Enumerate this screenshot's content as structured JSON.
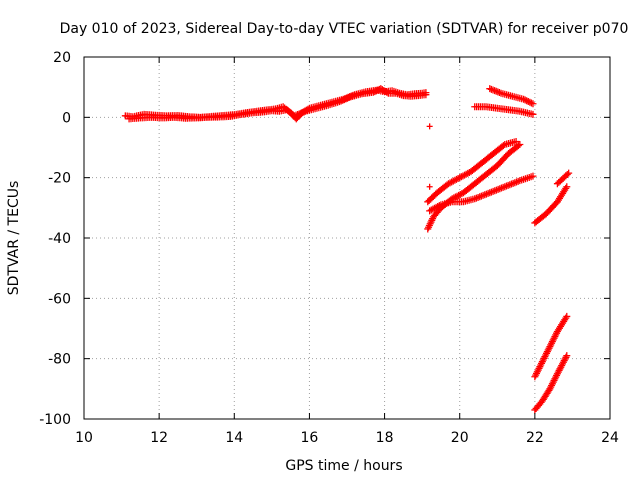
{
  "chart_data": {
    "type": "scatter",
    "title": "Day 010 of 2023, Sidereal Day-to-day VTEC variation (SDTVAR) for receiver p070",
    "xlabel": "GPS time / hours",
    "ylabel": "SDTVAR / TECUs",
    "xlim": [
      10,
      24
    ],
    "ylim": [
      -100,
      20
    ],
    "xticks": [
      "10",
      "12",
      "14",
      "16",
      "18",
      "20",
      "22",
      "24"
    ],
    "yticks": [
      "-100",
      "-80",
      "-60",
      "-40",
      "-20",
      "0",
      "20"
    ],
    "grid": true,
    "marker": "+",
    "series_color": "#ff0000",
    "series": [
      {
        "name": "arc-main",
        "points": [
          [
            11.1,
            0.5
          ],
          [
            11.3,
            0.2
          ],
          [
            11.6,
            1.0
          ],
          [
            11.9,
            0.7
          ],
          [
            12.2,
            0.5
          ],
          [
            12.5,
            0.6
          ],
          [
            12.8,
            0.2
          ],
          [
            13.1,
            0.0
          ],
          [
            13.4,
            0.3
          ],
          [
            13.7,
            0.6
          ],
          [
            14.0,
            0.9
          ],
          [
            14.3,
            1.5
          ],
          [
            14.6,
            2.0
          ],
          [
            14.9,
            2.5
          ],
          [
            15.1,
            2.8
          ],
          [
            15.3,
            3.5
          ],
          [
            15.5,
            1.5
          ],
          [
            15.65,
            -0.5
          ],
          [
            15.8,
            1.5
          ],
          [
            16.0,
            3.0
          ],
          [
            16.3,
            4.0
          ],
          [
            16.6,
            5.0
          ],
          [
            16.9,
            6.0
          ],
          [
            17.2,
            7.5
          ],
          [
            17.5,
            8.5
          ],
          [
            17.8,
            9.0
          ],
          [
            18.0,
            8.5
          ],
          [
            18.2,
            8.8
          ],
          [
            18.4,
            8.0
          ],
          [
            18.6,
            7.5
          ],
          [
            18.8,
            7.8
          ],
          [
            19.0,
            8.0
          ],
          [
            19.1,
            8.2
          ]
        ]
      },
      {
        "name": "arc-main-b",
        "points": [
          [
            11.2,
            -0.5
          ],
          [
            11.5,
            -0.2
          ],
          [
            11.8,
            0.0
          ],
          [
            12.1,
            -0.2
          ],
          [
            12.4,
            0.0
          ],
          [
            12.7,
            -0.3
          ],
          [
            13.0,
            -0.2
          ],
          [
            13.3,
            0.0
          ],
          [
            13.6,
            0.1
          ],
          [
            13.9,
            0.3
          ],
          [
            14.2,
            1.0
          ],
          [
            14.5,
            1.5
          ],
          [
            14.8,
            1.8
          ],
          [
            15.0,
            2.2
          ],
          [
            15.2,
            2.0
          ],
          [
            15.4,
            2.5
          ],
          [
            15.6,
            0.5
          ],
          [
            15.9,
            2.0
          ],
          [
            16.2,
            3.0
          ],
          [
            16.5,
            4.0
          ],
          [
            16.8,
            5.2
          ],
          [
            17.1,
            6.8
          ],
          [
            17.4,
            7.8
          ],
          [
            17.7,
            8.3
          ],
          [
            17.9,
            9.5
          ],
          [
            18.1,
            8.0
          ],
          [
            18.3,
            8.0
          ],
          [
            18.5,
            7.2
          ],
          [
            18.7,
            7.0
          ],
          [
            18.9,
            7.2
          ],
          [
            19.1,
            7.5
          ]
        ]
      },
      {
        "name": "isolated-a",
        "points": [
          [
            19.2,
            -3
          ]
        ]
      },
      {
        "name": "isolated-b",
        "points": [
          [
            19.2,
            -23
          ]
        ]
      },
      {
        "name": "arc-upper-right",
        "points": [
          [
            20.8,
            9.5
          ],
          [
            21.1,
            8.0
          ],
          [
            21.4,
            7.0
          ],
          [
            21.7,
            6.0
          ],
          [
            21.95,
            4.5
          ]
        ]
      },
      {
        "name": "arc-upper-right-b",
        "points": [
          [
            20.4,
            3.5
          ],
          [
            20.7,
            3.5
          ],
          [
            21.0,
            3.0
          ],
          [
            21.3,
            2.5
          ],
          [
            21.6,
            2.0
          ],
          [
            21.95,
            1.0
          ]
        ]
      },
      {
        "name": "arc-mid-a",
        "points": [
          [
            19.15,
            -28
          ],
          [
            19.4,
            -25
          ],
          [
            19.7,
            -22
          ],
          [
            20.0,
            -20
          ],
          [
            20.3,
            -18
          ],
          [
            20.6,
            -15
          ],
          [
            20.9,
            -12
          ],
          [
            21.2,
            -9
          ],
          [
            21.5,
            -8
          ]
        ]
      },
      {
        "name": "arc-mid-b",
        "points": [
          [
            19.15,
            -37
          ],
          [
            19.3,
            -33
          ],
          [
            19.5,
            -30
          ],
          [
            19.8,
            -27
          ],
          [
            20.1,
            -25
          ],
          [
            20.4,
            -22
          ],
          [
            20.7,
            -19
          ],
          [
            21.0,
            -16
          ],
          [
            21.3,
            -12
          ],
          [
            21.6,
            -9
          ]
        ]
      },
      {
        "name": "arc-mid-c",
        "points": [
          [
            19.2,
            -31
          ],
          [
            19.5,
            -29
          ],
          [
            19.8,
            -28
          ],
          [
            20.1,
            -28
          ],
          [
            20.4,
            -27
          ],
          [
            20.8,
            -25
          ],
          [
            21.2,
            -23
          ],
          [
            21.6,
            -21
          ],
          [
            21.95,
            -19.5
          ]
        ]
      },
      {
        "name": "arc-right-mid",
        "points": [
          [
            22.0,
            -35
          ],
          [
            22.3,
            -32
          ],
          [
            22.6,
            -28
          ],
          [
            22.85,
            -23
          ]
        ]
      },
      {
        "name": "arc-right-mid-b",
        "points": [
          [
            22.6,
            -22
          ],
          [
            22.9,
            -18.5
          ]
        ]
      },
      {
        "name": "arc-bottom-a",
        "points": [
          [
            22.0,
            -86
          ],
          [
            22.2,
            -81
          ],
          [
            22.4,
            -76
          ],
          [
            22.6,
            -71
          ],
          [
            22.85,
            -66
          ]
        ]
      },
      {
        "name": "arc-bottom-b",
        "points": [
          [
            22.0,
            -97
          ],
          [
            22.2,
            -94
          ],
          [
            22.4,
            -90
          ],
          [
            22.6,
            -85
          ],
          [
            22.85,
            -79
          ]
        ]
      }
    ]
  }
}
